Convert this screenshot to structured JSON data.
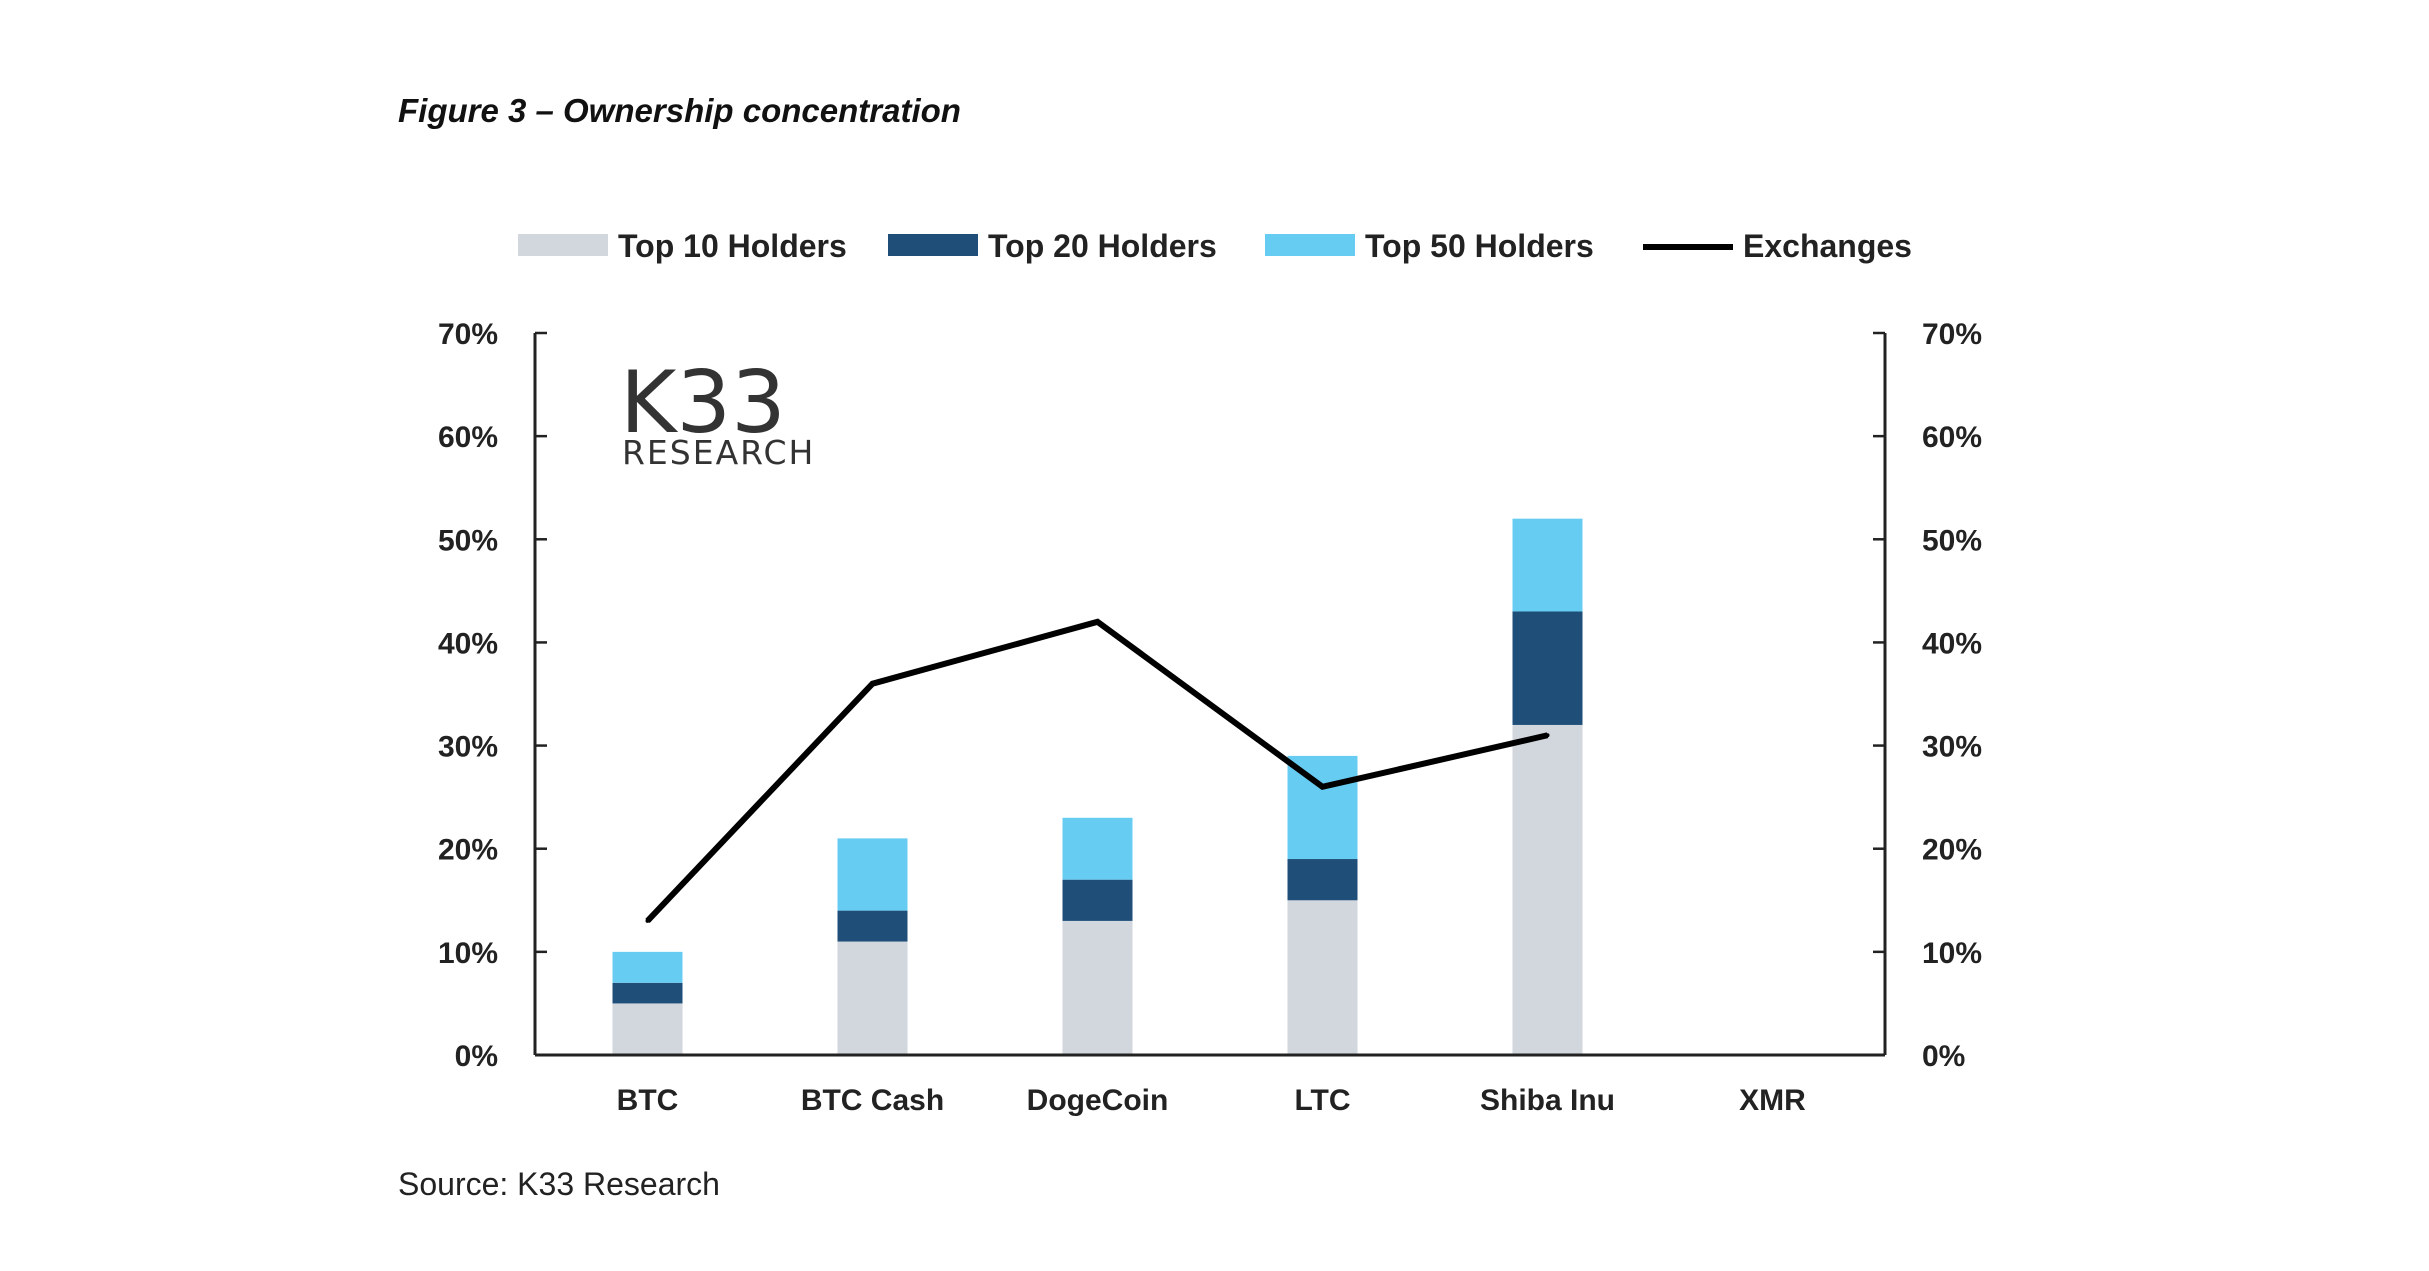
{
  "figure": {
    "title": "Figure 3 – Ownership concentration",
    "source": "Source: K33 Research"
  },
  "logo": {
    "main": "K33",
    "sub": "RESEARCH"
  },
  "colors": {
    "top10": "#d2d6dd",
    "top20": "#1f4e79",
    "top50": "#66ccf2",
    "exchanges": "#000000",
    "axis": "#222222"
  },
  "chart_data": {
    "type": "bar",
    "stacked": true,
    "title": "Figure 3 – Ownership concentration",
    "categories": [
      "BTC",
      "BTC Cash",
      "DogeCoin",
      "LTC",
      "Shiba Inu",
      "XMR"
    ],
    "series": [
      {
        "name": "Top 10 Holders",
        "kind": "bar",
        "color_key": "top10",
        "values": [
          5,
          11,
          13,
          15,
          32,
          null
        ]
      },
      {
        "name": "Top 20 Holders",
        "kind": "bar",
        "color_key": "top20",
        "values": [
          7,
          14,
          17,
          19,
          43,
          null
        ]
      },
      {
        "name": "Top 50 Holders",
        "kind": "bar",
        "color_key": "top50",
        "values": [
          10,
          21,
          23,
          29,
          52,
          null
        ]
      },
      {
        "name": "Exchanges",
        "kind": "line",
        "color_key": "exchanges",
        "values": [
          13,
          36,
          42,
          26,
          31,
          null
        ]
      }
    ],
    "stacking_note": "bar values are cumulative percent of supply held",
    "yticks": [
      "0%",
      "10%",
      "20%",
      "30%",
      "40%",
      "50%",
      "60%",
      "70%"
    ],
    "y2ticks": [
      "0%",
      "10%",
      "20%",
      "30%",
      "40%",
      "50%",
      "60%",
      "70%"
    ],
    "ylim": [
      0,
      70
    ],
    "y2lim": [
      0,
      70
    ],
    "xlabel": "",
    "ylabel": "",
    "legend_position": "top",
    "grid": false
  }
}
